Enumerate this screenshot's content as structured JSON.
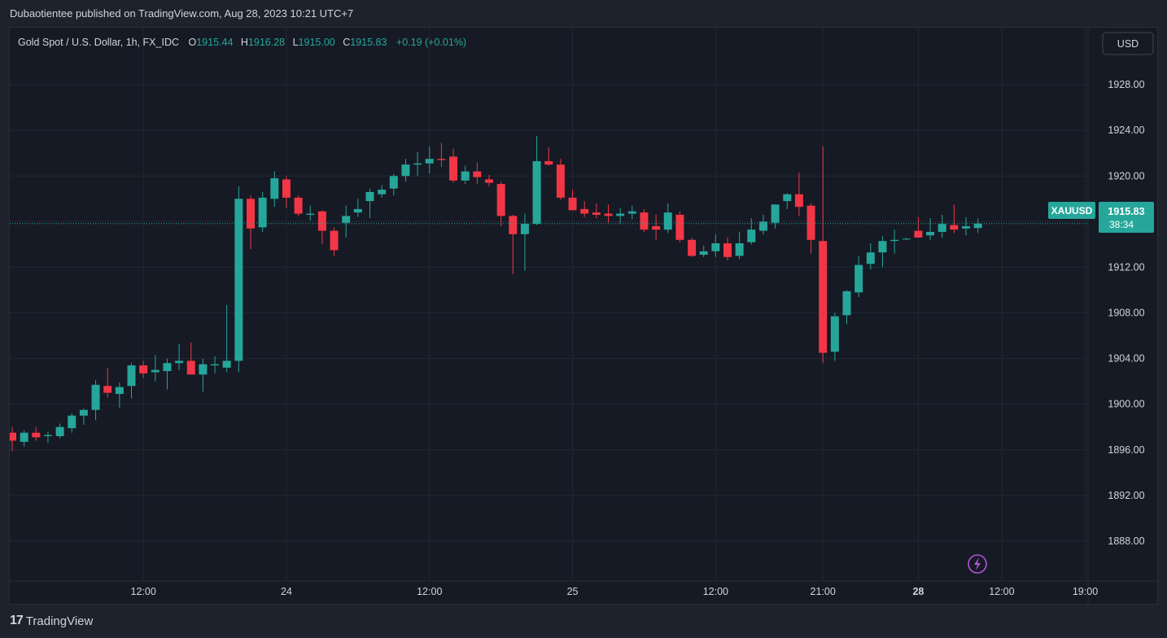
{
  "header": {
    "publisher_line": "Dubaotientee published on TradingView.com, Aug 28, 2023 10:21 UTC+7"
  },
  "legend": {
    "symbol_desc": "Gold Spot / U.S. Dollar, 1h, FX_IDC",
    "o_label": "O",
    "o_value": "1915.44",
    "h_label": "H",
    "h_value": "1916.28",
    "l_label": "L",
    "l_value": "1915.00",
    "c_label": "C",
    "c_value": "1915.83",
    "change": "+0.19 (+0.01%)"
  },
  "currency_button": "USD",
  "price_tag": {
    "symbol": "XAUUSD",
    "price": "1915.83",
    "countdown": "38:34"
  },
  "footer": {
    "logo_mark": "17",
    "brand": "TradingView"
  },
  "colors": {
    "up": "#26a69a",
    "down": "#f23645",
    "background": "#161a25",
    "grid": "#232733",
    "text": "#d1d4dc",
    "price_line": "#26a69a",
    "flash_icon": "#b553d8"
  },
  "icons": [
    "tradingview-logo-icon",
    "flash-icon"
  ],
  "chart_data": {
    "type": "candlestick",
    "title": "Gold Spot / U.S. Dollar, 1h, FX_IDC",
    "ylim": [
      1884.5,
      1933.0
    ],
    "y_ticks": [
      1928.0,
      1924.0,
      1920.0,
      1916.0,
      1912.0,
      1908.0,
      1904.0,
      1900.0,
      1896.0,
      1892.0,
      1888.0
    ],
    "y_tick_labels": [
      "1928.00",
      "1924.00",
      "1920.00",
      "1916.00",
      "1912.00",
      "1908.00",
      "1904.00",
      "1900.00",
      "1896.00",
      "1892.00",
      "1888.00"
    ],
    "x_ticks": [
      {
        "label": "12:00",
        "bar": 11,
        "bold": false
      },
      {
        "label": "24",
        "bar": 23,
        "bold": false
      },
      {
        "label": "12:00",
        "bar": 35,
        "bold": false
      },
      {
        "label": "25",
        "bar": 47,
        "bold": false
      },
      {
        "label": "12:00",
        "bar": 59,
        "bold": false
      },
      {
        "label": "21:00",
        "bar": 68,
        "bold": false
      },
      {
        "label": "28",
        "bar": 76,
        "bold": true
      },
      {
        "label": "12:00",
        "bar": 83,
        "bold": false
      },
      {
        "label": "19:00",
        "bar": 90,
        "bold": false
      }
    ],
    "last_price": 1915.83,
    "grid": true,
    "candles": [
      {
        "o": 1897.5,
        "h": 1898.0,
        "l": 1895.9,
        "c": 1896.8
      },
      {
        "o": 1896.7,
        "h": 1897.7,
        "l": 1896.3,
        "c": 1897.5
      },
      {
        "o": 1897.5,
        "h": 1898.0,
        "l": 1896.8,
        "c": 1897.1
      },
      {
        "o": 1897.2,
        "h": 1897.6,
        "l": 1896.6,
        "c": 1897.3
      },
      {
        "o": 1897.2,
        "h": 1898.3,
        "l": 1897.0,
        "c": 1898.0
      },
      {
        "o": 1897.9,
        "h": 1899.2,
        "l": 1897.5,
        "c": 1899.0
      },
      {
        "o": 1899.0,
        "h": 1899.6,
        "l": 1898.2,
        "c": 1899.5
      },
      {
        "o": 1899.5,
        "h": 1902.1,
        "l": 1898.6,
        "c": 1901.7
      },
      {
        "o": 1901.6,
        "h": 1903.2,
        "l": 1900.6,
        "c": 1901.0
      },
      {
        "o": 1900.9,
        "h": 1901.9,
        "l": 1899.7,
        "c": 1901.5
      },
      {
        "o": 1901.6,
        "h": 1903.6,
        "l": 1900.5,
        "c": 1903.4
      },
      {
        "o": 1903.4,
        "h": 1903.8,
        "l": 1902.3,
        "c": 1902.7
      },
      {
        "o": 1902.8,
        "h": 1904.3,
        "l": 1902.0,
        "c": 1903.0
      },
      {
        "o": 1902.9,
        "h": 1904.0,
        "l": 1901.3,
        "c": 1903.6
      },
      {
        "o": 1903.6,
        "h": 1905.3,
        "l": 1903.0,
        "c": 1903.8
      },
      {
        "o": 1903.8,
        "h": 1905.4,
        "l": 1902.7,
        "c": 1902.6
      },
      {
        "o": 1902.6,
        "h": 1904.0,
        "l": 1901.1,
        "c": 1903.5
      },
      {
        "o": 1903.4,
        "h": 1904.2,
        "l": 1902.7,
        "c": 1903.5
      },
      {
        "o": 1903.2,
        "h": 1908.7,
        "l": 1902.8,
        "c": 1903.8
      },
      {
        "o": 1903.8,
        "h": 1919.1,
        "l": 1902.8,
        "c": 1918.0
      },
      {
        "o": 1918.0,
        "h": 1918.3,
        "l": 1913.6,
        "c": 1915.4
      },
      {
        "o": 1915.5,
        "h": 1918.6,
        "l": 1915.1,
        "c": 1918.1
      },
      {
        "o": 1918.0,
        "h": 1920.4,
        "l": 1917.3,
        "c": 1919.8
      },
      {
        "o": 1919.7,
        "h": 1920.0,
        "l": 1917.2,
        "c": 1918.1
      },
      {
        "o": 1918.1,
        "h": 1918.3,
        "l": 1916.5,
        "c": 1916.7
      },
      {
        "o": 1916.6,
        "h": 1917.4,
        "l": 1916.1,
        "c": 1916.7
      },
      {
        "o": 1916.9,
        "h": 1917.0,
        "l": 1914.0,
        "c": 1915.2
      },
      {
        "o": 1915.2,
        "h": 1915.5,
        "l": 1913.0,
        "c": 1913.5
      },
      {
        "o": 1915.9,
        "h": 1917.4,
        "l": 1914.6,
        "c": 1916.5
      },
      {
        "o": 1916.8,
        "h": 1918.0,
        "l": 1916.4,
        "c": 1917.1
      },
      {
        "o": 1917.8,
        "h": 1918.9,
        "l": 1916.3,
        "c": 1918.6
      },
      {
        "o": 1918.4,
        "h": 1919.2,
        "l": 1918.1,
        "c": 1918.8
      },
      {
        "o": 1918.9,
        "h": 1920.2,
        "l": 1918.3,
        "c": 1920.0
      },
      {
        "o": 1920.0,
        "h": 1921.5,
        "l": 1919.5,
        "c": 1921.0
      },
      {
        "o": 1921.0,
        "h": 1922.1,
        "l": 1920.0,
        "c": 1921.1
      },
      {
        "o": 1921.1,
        "h": 1922.6,
        "l": 1920.2,
        "c": 1921.5
      },
      {
        "o": 1921.5,
        "h": 1922.9,
        "l": 1920.8,
        "c": 1921.4
      },
      {
        "o": 1921.7,
        "h": 1922.4,
        "l": 1919.4,
        "c": 1919.6
      },
      {
        "o": 1919.6,
        "h": 1920.9,
        "l": 1919.3,
        "c": 1920.4
      },
      {
        "o": 1920.4,
        "h": 1921.2,
        "l": 1919.3,
        "c": 1919.9
      },
      {
        "o": 1919.7,
        "h": 1920.1,
        "l": 1919.1,
        "c": 1919.4
      },
      {
        "o": 1919.3,
        "h": 1919.5,
        "l": 1915.6,
        "c": 1916.5
      },
      {
        "o": 1916.5,
        "h": 1916.6,
        "l": 1911.4,
        "c": 1914.9
      },
      {
        "o": 1914.9,
        "h": 1916.7,
        "l": 1911.7,
        "c": 1915.8
      },
      {
        "o": 1915.8,
        "h": 1923.5,
        "l": 1915.7,
        "c": 1921.3
      },
      {
        "o": 1921.3,
        "h": 1922.5,
        "l": 1920.9,
        "c": 1921.0
      },
      {
        "o": 1921.0,
        "h": 1921.5,
        "l": 1917.9,
        "c": 1918.1
      },
      {
        "o": 1918.1,
        "h": 1918.8,
        "l": 1917.0,
        "c": 1917.0
      },
      {
        "o": 1917.1,
        "h": 1917.8,
        "l": 1916.4,
        "c": 1916.7
      },
      {
        "o": 1916.8,
        "h": 1917.6,
        "l": 1916.3,
        "c": 1916.6
      },
      {
        "o": 1916.7,
        "h": 1917.5,
        "l": 1915.9,
        "c": 1916.5
      },
      {
        "o": 1916.5,
        "h": 1917.2,
        "l": 1915.8,
        "c": 1916.7
      },
      {
        "o": 1916.7,
        "h": 1917.4,
        "l": 1916.2,
        "c": 1916.9
      },
      {
        "o": 1916.8,
        "h": 1917.1,
        "l": 1915.1,
        "c": 1915.3
      },
      {
        "o": 1915.6,
        "h": 1916.6,
        "l": 1914.4,
        "c": 1915.3
      },
      {
        "o": 1915.3,
        "h": 1917.6,
        "l": 1915.0,
        "c": 1916.8
      },
      {
        "o": 1916.6,
        "h": 1916.9,
        "l": 1914.2,
        "c": 1914.4
      },
      {
        "o": 1914.4,
        "h": 1914.6,
        "l": 1912.9,
        "c": 1913.0
      },
      {
        "o": 1913.1,
        "h": 1913.9,
        "l": 1912.9,
        "c": 1913.4
      },
      {
        "o": 1913.4,
        "h": 1914.9,
        "l": 1912.9,
        "c": 1914.1
      },
      {
        "o": 1914.1,
        "h": 1914.6,
        "l": 1912.6,
        "c": 1912.9
      },
      {
        "o": 1913.0,
        "h": 1915.1,
        "l": 1912.7,
        "c": 1914.1
      },
      {
        "o": 1914.2,
        "h": 1916.3,
        "l": 1914.0,
        "c": 1915.3
      },
      {
        "o": 1915.2,
        "h": 1916.6,
        "l": 1914.9,
        "c": 1916.0
      },
      {
        "o": 1915.9,
        "h": 1917.5,
        "l": 1915.4,
        "c": 1917.5
      },
      {
        "o": 1917.8,
        "h": 1918.5,
        "l": 1917.1,
        "c": 1918.4
      },
      {
        "o": 1918.4,
        "h": 1920.3,
        "l": 1916.5,
        "c": 1917.3
      },
      {
        "o": 1917.4,
        "h": 1917.6,
        "l": 1913.2,
        "c": 1914.4
      },
      {
        "o": 1914.3,
        "h": 1922.6,
        "l": 1903.6,
        "c": 1904.5
      },
      {
        "o": 1904.6,
        "h": 1908.0,
        "l": 1903.8,
        "c": 1907.7
      },
      {
        "o": 1907.8,
        "h": 1910.0,
        "l": 1907.0,
        "c": 1909.9
      },
      {
        "o": 1909.8,
        "h": 1913.0,
        "l": 1909.4,
        "c": 1912.2
      },
      {
        "o": 1912.3,
        "h": 1914.1,
        "l": 1911.8,
        "c": 1913.3
      },
      {
        "o": 1913.3,
        "h": 1914.7,
        "l": 1912.0,
        "c": 1914.3
      },
      {
        "o": 1914.3,
        "h": 1915.3,
        "l": 1913.2,
        "c": 1914.4
      },
      {
        "o": 1914.5,
        "h": 1914.6,
        "l": 1914.4,
        "c": 1914.5
      },
      {
        "o": 1915.2,
        "h": 1916.4,
        "l": 1914.6,
        "c": 1914.6
      },
      {
        "o": 1914.8,
        "h": 1916.3,
        "l": 1914.4,
        "c": 1915.1
      },
      {
        "o": 1915.1,
        "h": 1916.6,
        "l": 1914.6,
        "c": 1915.8
      },
      {
        "o": 1915.7,
        "h": 1917.5,
        "l": 1915.0,
        "c": 1915.3
      },
      {
        "o": 1915.4,
        "h": 1916.4,
        "l": 1914.8,
        "c": 1915.6
      },
      {
        "o": 1915.44,
        "h": 1916.28,
        "l": 1915.0,
        "c": 1915.83
      }
    ]
  }
}
